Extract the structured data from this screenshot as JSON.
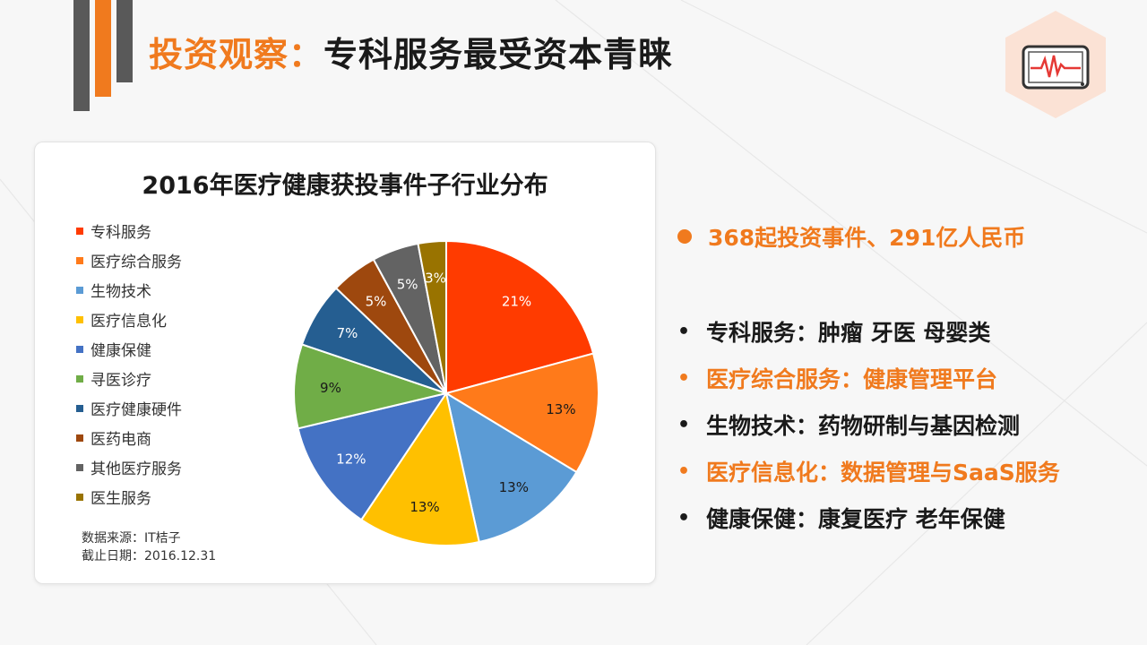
{
  "header": {
    "title_prefix": "投资观察：",
    "title_main": "专科服务最受资本青睐"
  },
  "chart_data": {
    "type": "pie",
    "title": "2016年医疗健康获投事件子行业分布",
    "categories": [
      "专科服务",
      "医疗综合服务",
      "生物技术",
      "医疗信息化",
      "健康保健",
      "寻医诊疗",
      "医疗健康硬件",
      "医药电商",
      "其他医疗服务",
      "医生服务"
    ],
    "values": [
      21,
      13,
      13,
      13,
      12,
      9,
      7,
      5,
      5,
      3
    ],
    "labels": [
      "21%",
      "13%",
      "13%",
      "13%",
      "12%",
      "9%",
      "7%",
      "5%",
      "5%",
      "3%"
    ],
    "colors": [
      "#ff3b00",
      "#ff7a1a",
      "#5b9bd5",
      "#ffc000",
      "#4472c4",
      "#70ad47",
      "#255e91",
      "#9e480e",
      "#636363",
      "#997300"
    ],
    "label_colors": [
      "#ffffff",
      "#1a1a1a",
      "#1a1a1a",
      "#1a1a1a",
      "#ffffff",
      "#1a1a1a",
      "#ffffff",
      "#ffffff",
      "#ffffff",
      "#ffffff"
    ],
    "legend_position": "left",
    "source_line1": "数据来源：IT桔子",
    "source_line2": "截止日期：2016.12.31"
  },
  "highlight": "368起投资事件、291亿人民币",
  "bullets": [
    {
      "text": "专科服务：肿瘤 牙医 母婴类",
      "color": "dark"
    },
    {
      "text": "医疗综合服务：健康管理平台",
      "color": "orange"
    },
    {
      "text": "生物技术：药物研制与基因检测",
      "color": "dark"
    },
    {
      "text": "医疗信息化：数据管理与SaaS服务",
      "color": "orange"
    },
    {
      "text": "健康保健：康复医疗  老年保健",
      "color": "dark"
    }
  ],
  "icons": {
    "logo": "monitor-heartbeat-icon",
    "bullet": "bullet-dot-icon"
  }
}
